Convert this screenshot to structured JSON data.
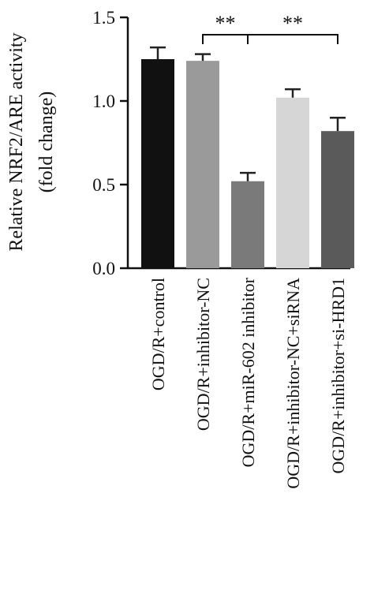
{
  "chart_data": {
    "type": "bar",
    "ylabel_line1": "Relative NRF2/ARE activity",
    "ylabel_line2": "(fold change)",
    "ylim": [
      0,
      1.5
    ],
    "yticks": [
      "0.0",
      "0.5",
      "1.0",
      "1.5"
    ],
    "categories": [
      "OGD/R+control",
      "OGD/R+inhibitor-NC",
      "OGD/R+miR-602 inhibitor",
      "OGD/R+inhibitor-NC+siRNA",
      "OGD/R+inhibitor+si-HRD1"
    ],
    "values": [
      1.25,
      1.24,
      0.52,
      1.02,
      0.82
    ],
    "errors": [
      0.07,
      0.04,
      0.05,
      0.05,
      0.08
    ],
    "colors": [
      "#111111",
      "#9a9a9a",
      "#7a7a7a",
      "#d6d6d6",
      "#5a5a5a"
    ],
    "significance": [
      {
        "from": 1,
        "to": 2,
        "label": "**"
      },
      {
        "from": 2,
        "to": 4,
        "label": "**"
      }
    ],
    "grid": false
  }
}
